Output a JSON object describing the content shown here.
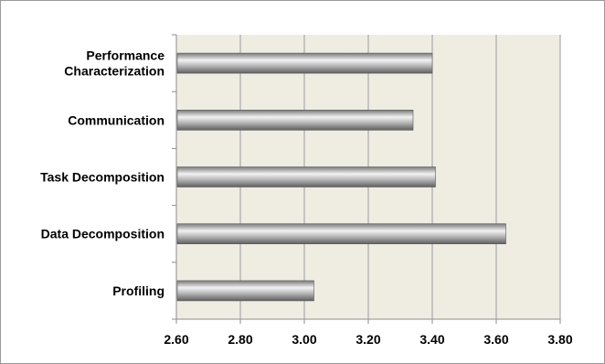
{
  "chart_data": {
    "type": "bar",
    "orientation": "horizontal",
    "categories": [
      "Performance Characterization",
      "Communication",
      "Task Decomposition",
      "Data Decomposition",
      "Profiling"
    ],
    "category_lines": [
      [
        "Performance",
        "Characterization"
      ],
      [
        "Communication"
      ],
      [
        "Task Decomposition"
      ],
      [
        "Data Decomposition"
      ],
      [
        "Profiling"
      ]
    ],
    "values": [
      3.4,
      3.34,
      3.41,
      3.63,
      3.03
    ],
    "xlim": [
      2.6,
      3.8
    ],
    "xticks": [
      "2.60",
      "2.80",
      "3.00",
      "3.20",
      "3.40",
      "3.60",
      "3.80"
    ],
    "grid": "vertical",
    "legend": "none",
    "title": "",
    "xlabel": "",
    "ylabel": "",
    "colors": {
      "plot_background": "#EFECE2",
      "gridline": "#9C9C9C",
      "bar_light": "#F2F2F2",
      "bar_dark": "#6E6E6E",
      "axis": "#8C8C8C"
    }
  }
}
